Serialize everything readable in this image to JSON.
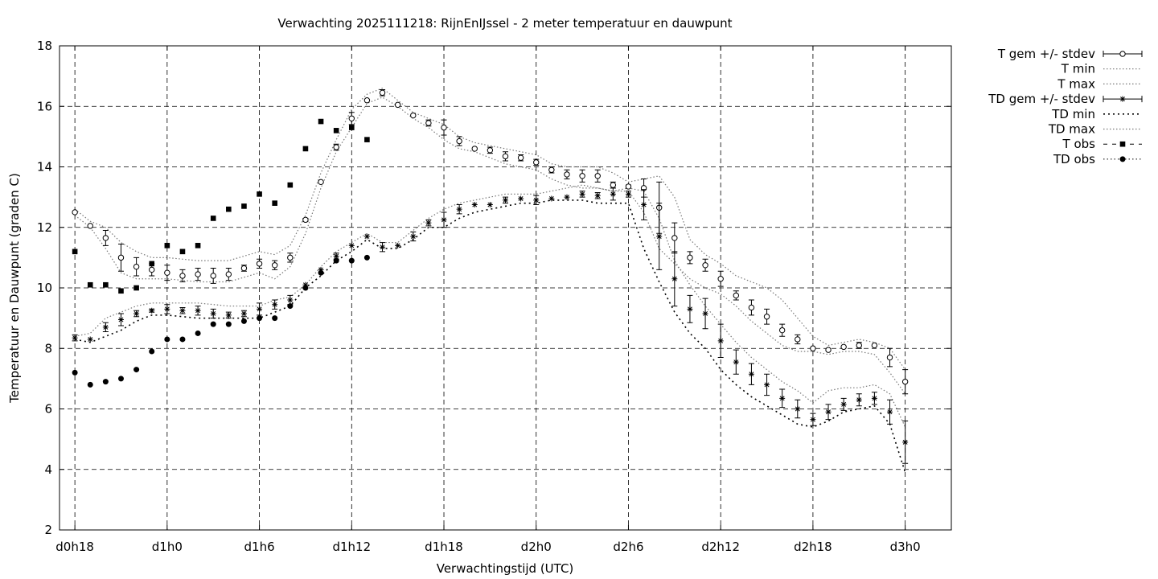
{
  "chart_data": {
    "type": "line",
    "title": "Verwachting 2025111218: RijnEnIJssel - 2 meter temperatuur en dauwpunt",
    "xlabel": "Verwachtingstijd (UTC)",
    "ylabel": "Temperatuur en Dauwpunt (graden C)",
    "x_unit": "hours since d0h0",
    "xlim": [
      17,
      75
    ],
    "ylim": [
      2,
      18
    ],
    "y_ticks": [
      2,
      4,
      6,
      8,
      10,
      12,
      14,
      16,
      18
    ],
    "x_ticks": [
      {
        "x": 18,
        "label": "d0h18"
      },
      {
        "x": 24,
        "label": "d1h0"
      },
      {
        "x": 30,
        "label": "d1h6"
      },
      {
        "x": 36,
        "label": "d1h12"
      },
      {
        "x": 42,
        "label": "d1h18"
      },
      {
        "x": 48,
        "label": "d2h0"
      },
      {
        "x": 54,
        "label": "d2h6"
      },
      {
        "x": 60,
        "label": "d2h12"
      },
      {
        "x": 66,
        "label": "d2h18"
      },
      {
        "x": 72,
        "label": "d3h0"
      }
    ],
    "grid": true,
    "legend_position": "outside-top-right",
    "legend": [
      {
        "key": "t_mean",
        "label": "T gem +/- stdev"
      },
      {
        "key": "t_min",
        "label": "T min"
      },
      {
        "key": "t_max",
        "label": "T max"
      },
      {
        "key": "td_mean",
        "label": "TD gem +/- stdev"
      },
      {
        "key": "td_min",
        "label": "TD min"
      },
      {
        "key": "td_max",
        "label": "TD max"
      },
      {
        "key": "t_obs",
        "label": "T obs"
      },
      {
        "key": "td_obs",
        "label": "TD obs"
      }
    ],
    "series": {
      "t_mean": {
        "x": [
          18,
          19,
          20,
          21,
          22,
          23,
          24,
          25,
          26,
          27,
          28,
          29,
          30,
          31,
          32,
          33,
          34,
          35,
          36,
          37,
          38,
          39,
          40,
          41,
          42,
          43,
          44,
          45,
          46,
          47,
          48,
          49,
          50,
          51,
          52,
          53,
          54,
          55,
          56,
          57,
          58,
          59,
          60,
          61,
          62,
          63,
          64,
          65,
          66,
          67,
          68,
          69,
          70,
          71,
          72
        ],
        "y": [
          12.5,
          12.05,
          11.65,
          11.0,
          10.7,
          10.6,
          10.5,
          10.4,
          10.45,
          10.4,
          10.45,
          10.65,
          10.8,
          10.75,
          11.0,
          12.25,
          13.5,
          14.65,
          15.6,
          16.2,
          16.45,
          16.05,
          15.7,
          15.45,
          15.3,
          14.85,
          14.6,
          14.55,
          14.35,
          14.3,
          14.15,
          13.9,
          13.75,
          13.7,
          13.7,
          13.4,
          13.35,
          13.3,
          12.65,
          11.65,
          11.0,
          10.75,
          10.3,
          9.75,
          9.35,
          9.05,
          8.6,
          8.3,
          8.0,
          7.95,
          8.05,
          8.1,
          8.1,
          7.7,
          6.9
        ],
        "err": [
          0,
          0,
          0.25,
          0.45,
          0.3,
          0.2,
          0.25,
          0.2,
          0.2,
          0.25,
          0.2,
          0.1,
          0.15,
          0.15,
          0.15,
          0.05,
          0,
          0.1,
          0.2,
          0,
          0.1,
          0,
          0,
          0.1,
          0.25,
          0.15,
          0,
          0.1,
          0.15,
          0.1,
          0.1,
          0.1,
          0.15,
          0.2,
          0.2,
          0.1,
          0.05,
          0.3,
          0.85,
          0.5,
          0.2,
          0.2,
          0.25,
          0.15,
          0.25,
          0.25,
          0.2,
          0.15,
          0,
          0,
          0,
          0.1,
          0,
          0.3,
          0.4
        ]
      },
      "t_min": {
        "x": [
          18,
          19,
          20,
          21,
          22,
          23,
          24,
          26,
          28,
          30,
          31,
          32,
          33,
          34,
          35,
          36,
          37,
          38,
          39,
          40,
          41,
          42,
          43,
          44,
          45,
          46,
          47,
          48,
          49,
          50,
          51,
          52,
          53,
          54,
          55,
          56,
          57,
          58,
          59,
          60,
          61,
          62,
          63,
          64,
          65,
          66,
          67,
          68,
          69,
          70,
          71,
          72
        ],
        "y": [
          12.4,
          12.0,
          11.3,
          10.5,
          10.3,
          10.3,
          10.3,
          10.2,
          10.2,
          10.5,
          10.3,
          10.7,
          11.8,
          13.3,
          14.5,
          15.3,
          16.1,
          16.3,
          16.0,
          15.6,
          15.3,
          14.9,
          14.6,
          14.5,
          14.3,
          14.1,
          14.0,
          13.9,
          13.6,
          13.4,
          13.3,
          13.3,
          13.2,
          13.2,
          12.5,
          11.3,
          10.8,
          10.3,
          10.0,
          9.8,
          9.4,
          8.9,
          8.5,
          8.1,
          7.9,
          7.9,
          7.8,
          7.9,
          7.9,
          7.8,
          7.2,
          6.5
        ]
      },
      "t_max": {
        "x": [
          18,
          19,
          20,
          21,
          22,
          23,
          24,
          26,
          28,
          30,
          31,
          32,
          33,
          34,
          35,
          36,
          37,
          38,
          39,
          40,
          41,
          42,
          43,
          44,
          45,
          46,
          47,
          48,
          49,
          50,
          51,
          52,
          53,
          54,
          55,
          56,
          57,
          58,
          59,
          60,
          61,
          62,
          63,
          64,
          65,
          66,
          67,
          68,
          69,
          70,
          71,
          72
        ],
        "y": [
          12.6,
          12.2,
          12.0,
          11.5,
          11.2,
          11.0,
          11.0,
          10.9,
          10.9,
          11.2,
          11.1,
          11.4,
          12.4,
          13.8,
          14.9,
          15.9,
          16.4,
          16.6,
          16.2,
          15.8,
          15.6,
          15.4,
          15.0,
          14.8,
          14.7,
          14.6,
          14.5,
          14.4,
          14.1,
          14.0,
          14.0,
          14.0,
          13.8,
          13.5,
          13.6,
          13.7,
          13.0,
          11.6,
          11.1,
          10.8,
          10.4,
          10.2,
          10.0,
          9.6,
          9.0,
          8.4,
          8.1,
          8.2,
          8.3,
          8.2,
          8.0,
          7.3
        ]
      },
      "td_mean": {
        "x": [
          18,
          19,
          20,
          21,
          22,
          23,
          24,
          25,
          26,
          27,
          28,
          29,
          30,
          31,
          32,
          33,
          34,
          35,
          36,
          37,
          38,
          39,
          40,
          41,
          42,
          43,
          44,
          45,
          46,
          47,
          48,
          49,
          50,
          51,
          52,
          53,
          54,
          55,
          56,
          57,
          58,
          59,
          60,
          61,
          62,
          63,
          64,
          65,
          66,
          67,
          68,
          69,
          70,
          71,
          72
        ],
        "y": [
          8.35,
          8.3,
          8.7,
          8.95,
          9.15,
          9.25,
          9.3,
          9.25,
          9.25,
          9.15,
          9.1,
          9.15,
          9.3,
          9.45,
          9.6,
          10.1,
          10.6,
          11.05,
          11.4,
          11.7,
          11.35,
          11.4,
          11.7,
          12.15,
          12.25,
          12.6,
          12.75,
          12.75,
          12.9,
          12.95,
          12.9,
          12.95,
          13.0,
          13.1,
          13.05,
          13.1,
          13.1,
          12.75,
          11.7,
          10.3,
          9.3,
          9.15,
          8.25,
          7.55,
          7.15,
          6.8,
          6.35,
          6.0,
          5.65,
          5.9,
          6.15,
          6.3,
          6.35,
          5.9,
          4.9
        ],
        "err": [
          0.1,
          0,
          0.15,
          0.2,
          0.1,
          0.05,
          0.15,
          0.1,
          0.15,
          0.15,
          0.1,
          0.1,
          0.2,
          0.15,
          0.15,
          0,
          0,
          0.1,
          0,
          0,
          0.15,
          0,
          0.15,
          0.1,
          0.25,
          0.15,
          0,
          0,
          0.1,
          0,
          0.15,
          0,
          0,
          0.1,
          0.1,
          0.2,
          0.1,
          0.5,
          1.1,
          0.9,
          0.45,
          0.5,
          0.55,
          0.4,
          0.35,
          0.35,
          0.3,
          0.3,
          0.2,
          0.25,
          0.2,
          0.2,
          0.2,
          0.4,
          0.7
        ]
      },
      "td_min": {
        "x": [
          18,
          19,
          20,
          21,
          22,
          23,
          24,
          26,
          28,
          30,
          31,
          32,
          33,
          34,
          35,
          36,
          37,
          38,
          39,
          40,
          41,
          42,
          43,
          44,
          45,
          46,
          47,
          48,
          49,
          50,
          51,
          52,
          53,
          54,
          55,
          56,
          57,
          58,
          59,
          60,
          61,
          62,
          63,
          64,
          65,
          66,
          67,
          68,
          69,
          70,
          71,
          72
        ],
        "y": [
          8.3,
          8.2,
          8.4,
          8.6,
          8.9,
          9.1,
          9.1,
          9.0,
          9.0,
          9.0,
          9.2,
          9.4,
          10.0,
          10.4,
          10.9,
          11.2,
          11.6,
          11.3,
          11.3,
          11.6,
          12.0,
          12.0,
          12.3,
          12.5,
          12.6,
          12.7,
          12.8,
          12.8,
          12.9,
          12.9,
          12.9,
          12.8,
          12.8,
          12.8,
          11.3,
          10.2,
          9.2,
          8.5,
          8.0,
          7.3,
          6.8,
          6.4,
          6.1,
          5.8,
          5.5,
          5.4,
          5.6,
          5.9,
          6.0,
          6.1,
          5.5,
          3.9
        ]
      },
      "td_max": {
        "x": [
          18,
          19,
          20,
          21,
          22,
          23,
          24,
          26,
          28,
          30,
          31,
          32,
          33,
          34,
          35,
          36,
          37,
          38,
          39,
          40,
          41,
          42,
          43,
          44,
          45,
          46,
          47,
          48,
          49,
          50,
          51,
          52,
          53,
          54,
          55,
          56,
          57,
          58,
          59,
          60,
          61,
          62,
          63,
          64,
          65,
          66,
          67,
          68,
          69,
          70,
          71,
          72
        ],
        "y": [
          8.4,
          8.5,
          9.0,
          9.2,
          9.4,
          9.5,
          9.5,
          9.5,
          9.4,
          9.4,
          9.6,
          9.7,
          10.1,
          10.7,
          11.2,
          11.5,
          11.8,
          11.5,
          11.5,
          11.9,
          12.3,
          12.6,
          12.8,
          12.9,
          13.0,
          13.1,
          13.1,
          13.1,
          13.2,
          13.3,
          13.4,
          13.3,
          13.2,
          13.3,
          13.2,
          12.3,
          10.9,
          10.1,
          9.4,
          8.8,
          8.2,
          7.7,
          7.3,
          6.9,
          6.6,
          6.2,
          6.6,
          6.7,
          6.7,
          6.8,
          6.5,
          5.4
        ]
      },
      "t_obs": {
        "x": [
          18,
          19,
          20,
          21,
          22,
          23,
          24,
          25,
          26,
          27,
          28,
          29,
          30,
          31,
          32,
          33,
          34,
          35,
          36,
          37
        ],
        "y": [
          11.2,
          10.1,
          10.1,
          9.9,
          10.0,
          10.8,
          11.4,
          11.2,
          11.4,
          12.3,
          12.6,
          12.7,
          13.1,
          12.8,
          13.4,
          14.6,
          15.5,
          15.2,
          15.3,
          14.9
        ]
      },
      "td_obs": {
        "x": [
          18,
          19,
          20,
          21,
          22,
          23,
          24,
          25,
          26,
          27,
          28,
          29,
          30,
          31,
          32,
          33,
          34,
          35,
          36,
          37
        ],
        "y": [
          7.2,
          6.8,
          6.9,
          7.0,
          7.3,
          7.9,
          8.3,
          8.3,
          8.5,
          8.8,
          8.8,
          8.9,
          9.0,
          9.0,
          9.4,
          10.0,
          10.5,
          10.9,
          10.9,
          11.0
        ]
      }
    }
  }
}
